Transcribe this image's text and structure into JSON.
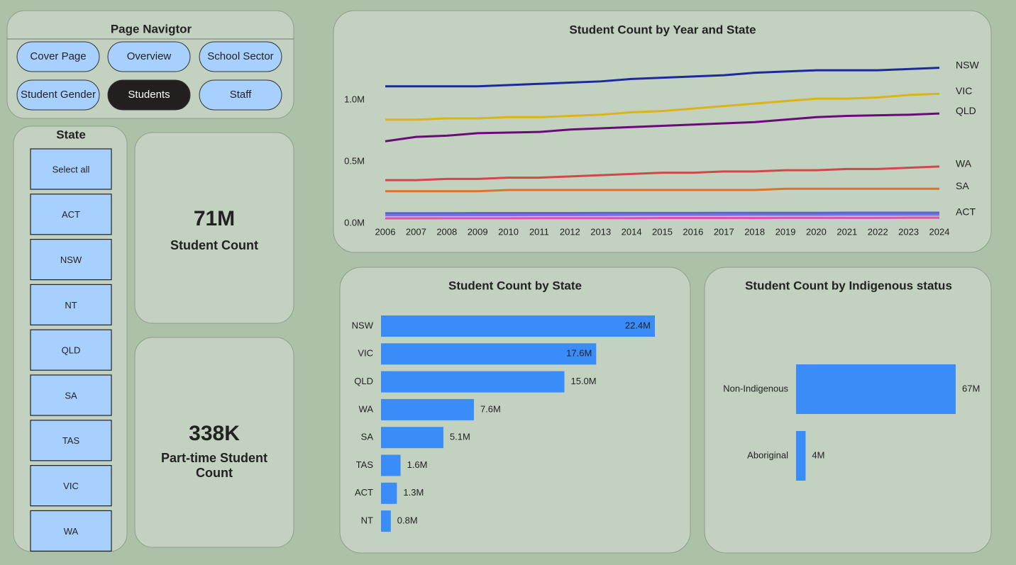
{
  "navigator": {
    "title": "Page Navigtor",
    "buttons": [
      "Cover Page",
      "Overview",
      "School Sector",
      "Student Gender",
      "Students",
      "Staff"
    ]
  },
  "slicer": {
    "title": "State",
    "items": [
      "Select all",
      "ACT",
      "NSW",
      "NT",
      "QLD",
      "SA",
      "TAS",
      "VIC",
      "WA"
    ]
  },
  "cards": [
    {
      "value": "71M",
      "label": "Student Count"
    },
    {
      "value": "338K",
      "label": "Part-time Student Count"
    }
  ],
  "chart_data": [
    {
      "type": "line",
      "title": "Student Count by Year and State",
      "x": [
        2006,
        2007,
        2008,
        2009,
        2010,
        2011,
        2012,
        2013,
        2014,
        2015,
        2016,
        2017,
        2018,
        2019,
        2020,
        2021,
        2022,
        2023,
        2024
      ],
      "xlim": [
        2006,
        2024
      ],
      "xticks": [
        2006,
        2007,
        2008,
        2009,
        2010,
        2011,
        2012,
        2013,
        2014,
        2015,
        2016,
        2017,
        2018,
        2019,
        2020,
        2021,
        2022,
        2023,
        2024
      ],
      "ylim": [
        0,
        1.35
      ],
      "yticks": [
        {
          "value": 0,
          "label": "0.0M"
        },
        {
          "value": 0.5,
          "label": "0.5M"
        },
        {
          "value": 1,
          "label": "1.0M"
        }
      ],
      "series": [
        {
          "name": "NSW",
          "color": "#1c2a9c",
          "values": [
            1.11,
            1.11,
            1.11,
            1.11,
            1.12,
            1.13,
            1.14,
            1.15,
            1.17,
            1.18,
            1.19,
            1.2,
            1.22,
            1.23,
            1.24,
            1.24,
            1.24,
            1.25,
            1.26
          ]
        },
        {
          "name": "VIC",
          "color": "#dcb418",
          "values": [
            0.84,
            0.84,
            0.85,
            0.85,
            0.86,
            0.86,
            0.87,
            0.88,
            0.9,
            0.91,
            0.93,
            0.95,
            0.97,
            0.99,
            1.01,
            1.01,
            1.02,
            1.04,
            1.05
          ]
        },
        {
          "name": "QLD",
          "color": "#6a0c78",
          "values": [
            0.665,
            0.7,
            0.71,
            0.73,
            0.735,
            0.74,
            0.76,
            0.77,
            0.78,
            0.79,
            0.8,
            0.81,
            0.82,
            0.84,
            0.86,
            0.87,
            0.875,
            0.88,
            0.89
          ]
        },
        {
          "name": "WA",
          "color": "#d04848",
          "values": [
            0.35,
            0.35,
            0.36,
            0.36,
            0.37,
            0.37,
            0.38,
            0.39,
            0.4,
            0.41,
            0.41,
            0.42,
            0.42,
            0.43,
            0.43,
            0.44,
            0.44,
            0.45,
            0.46
          ]
        },
        {
          "name": "SA",
          "color": "#e07030",
          "values": [
            0.26,
            0.26,
            0.26,
            0.26,
            0.27,
            0.27,
            0.27,
            0.27,
            0.27,
            0.27,
            0.27,
            0.27,
            0.27,
            0.28,
            0.28,
            0.28,
            0.28,
            0.28,
            0.28
          ]
        },
        {
          "name": "ACT",
          "color": "#8a6ae0",
          "values": [
            0.065,
            0.065,
            0.066,
            0.066,
            0.066,
            0.067,
            0.067,
            0.067,
            0.068,
            0.068,
            0.068,
            0.068,
            0.069,
            0.069,
            0.069,
            0.07,
            0.07,
            0.07,
            0.07
          ]
        },
        {
          "color": "#4f6ad6",
          "values": [
            0.082,
            0.082,
            0.082,
            0.083,
            0.083,
            0.083,
            0.083,
            0.084,
            0.084,
            0.084,
            0.084,
            0.085,
            0.085,
            0.085,
            0.085,
            0.086,
            0.086,
            0.086,
            0.086
          ]
        },
        {
          "color": "#e050b0",
          "values": [
            0.04,
            0.04,
            0.041,
            0.041,
            0.041,
            0.042,
            0.042,
            0.042,
            0.042,
            0.043,
            0.043,
            0.043,
            0.043,
            0.044,
            0.044,
            0.044,
            0.044,
            0.045,
            0.045
          ]
        }
      ]
    },
    {
      "type": "bar",
      "title": "Student Count by State",
      "color": "#3a8cf8",
      "categories": [
        "NSW",
        "VIC",
        "QLD",
        "WA",
        "SA",
        "TAS",
        "ACT",
        "NT"
      ],
      "values": [
        22.4,
        17.6,
        15.0,
        7.6,
        5.1,
        1.6,
        1.3,
        0.8
      ],
      "value_labels": [
        "22.4M",
        "17.6M",
        "15.0M",
        "7.6M",
        "5.1M",
        "1.6M",
        "1.3M",
        "0.8M"
      ]
    },
    {
      "type": "bar",
      "title": "Student Count by Indigenous status",
      "color": "#3a8cf8",
      "categories": [
        "Non-Indigenous",
        "Aboriginal"
      ],
      "values": [
        67,
        4
      ],
      "value_labels": [
        "67M",
        "4M"
      ]
    }
  ]
}
